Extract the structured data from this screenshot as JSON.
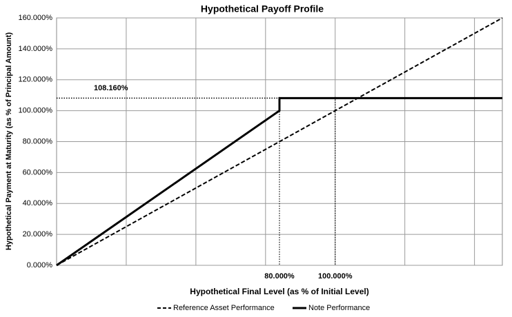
{
  "chart_data": {
    "type": "line",
    "title": "Hypothetical Payoff Profile",
    "xlabel": "Hypothetical Final Level (as % of Initial Level)",
    "ylabel": "Hypothetical Payment at Maturity  (as % of Principal Amount)",
    "xlim": [
      0,
      160
    ],
    "ylim": [
      0,
      160
    ],
    "xticks": [
      {
        "value": 80,
        "label": "80.000%"
      },
      {
        "value": 100,
        "label": "100.000%"
      }
    ],
    "x_gridlines": [
      25,
      50,
      75,
      100,
      125,
      150
    ],
    "yticks": [
      {
        "value": 0,
        "label": "0.000%"
      },
      {
        "value": 20,
        "label": "20.000%"
      },
      {
        "value": 40,
        "label": "40.000%"
      },
      {
        "value": 60,
        "label": "60.000%"
      },
      {
        "value": 80,
        "label": "80.000%"
      },
      {
        "value": 100,
        "label": "100.000%"
      },
      {
        "value": 120,
        "label": "120.000%"
      },
      {
        "value": 140,
        "label": "140.000%"
      },
      {
        "value": 160,
        "label": "160.000%"
      }
    ],
    "grid": true,
    "series": [
      {
        "name": "Reference Asset Performance",
        "color": "#000000",
        "dash": "dashed",
        "x": [
          0,
          160
        ],
        "values": [
          0,
          160
        ]
      },
      {
        "name": "Note Performance",
        "color": "#000000",
        "dash": "solid",
        "x": [
          0,
          80,
          80,
          160
        ],
        "values": [
          0,
          100,
          108.16,
          108.16
        ]
      }
    ],
    "annotations": [
      {
        "label": "108.160%",
        "value": 108.16
      }
    ],
    "legend": "bottom"
  }
}
